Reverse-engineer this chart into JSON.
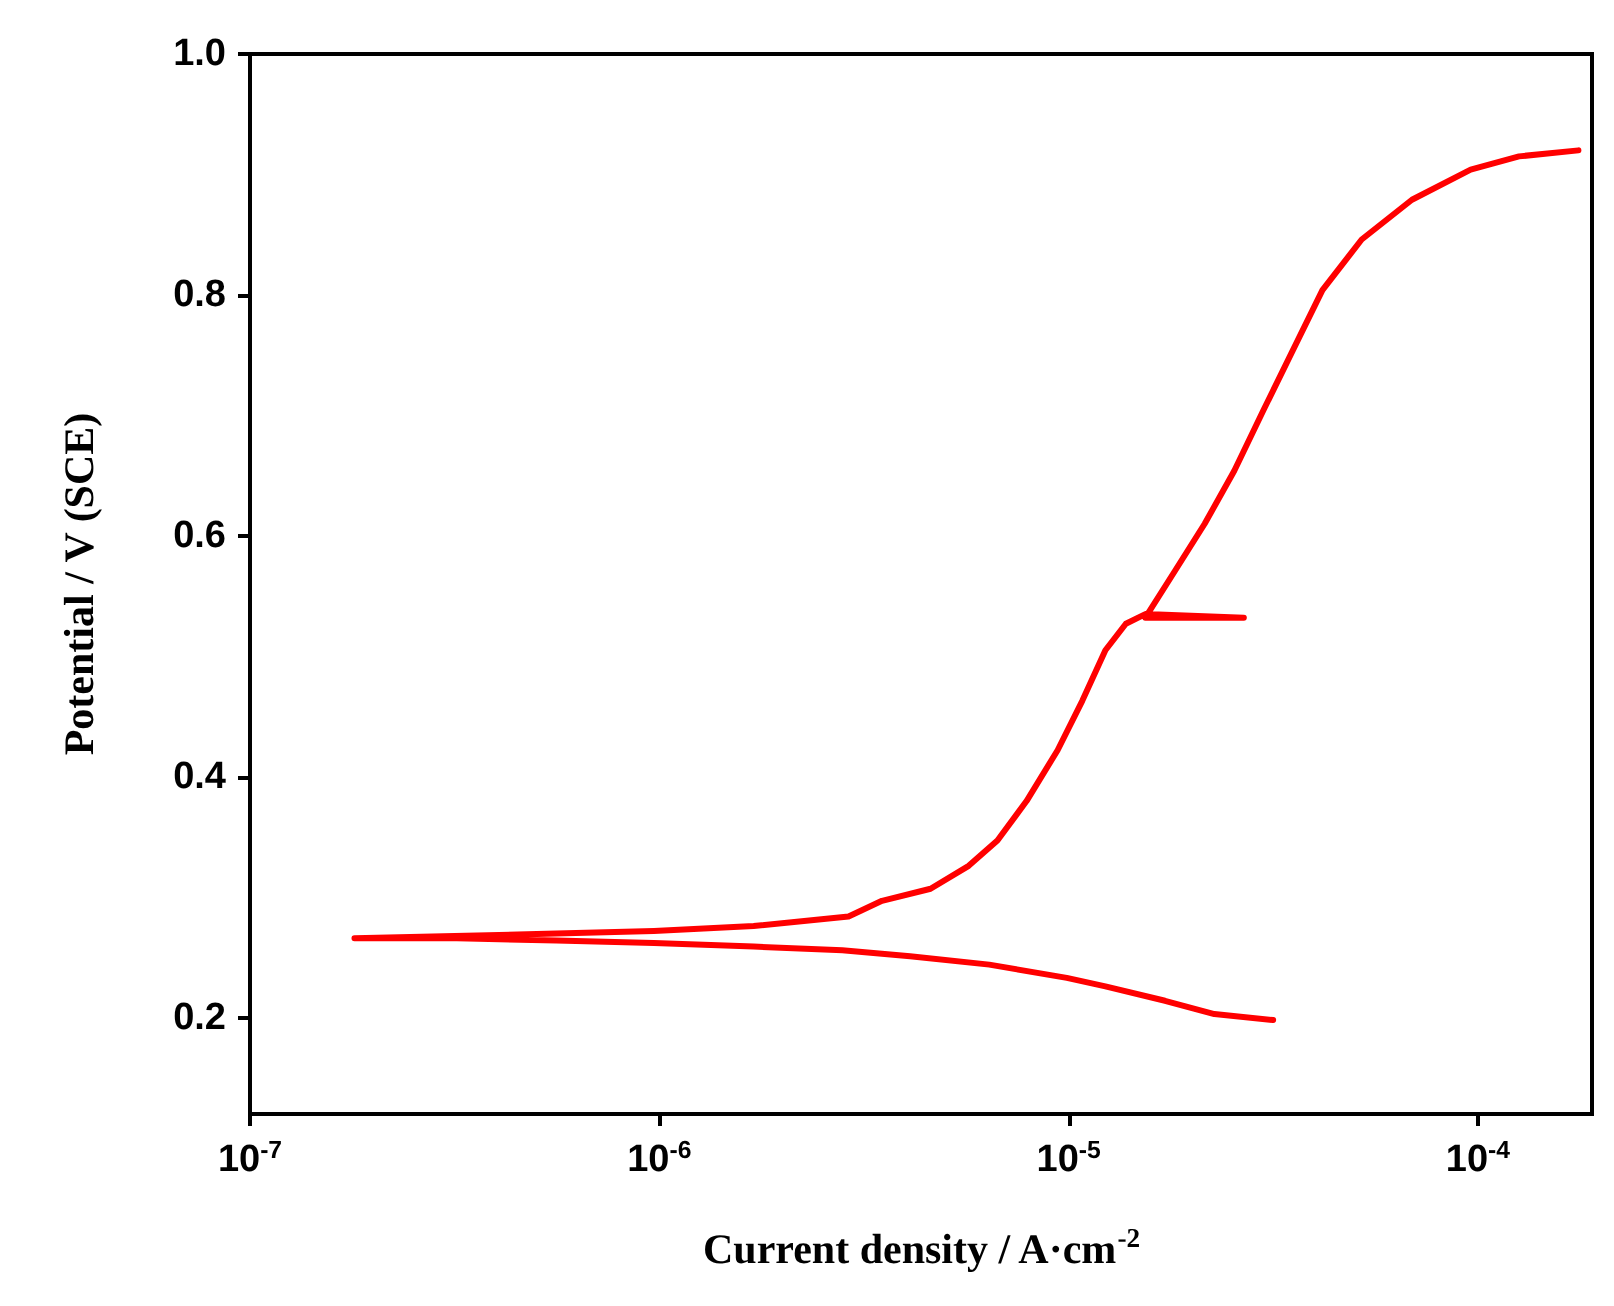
{
  "chart_data": {
    "type": "line",
    "xlabel": "Current density / A·cm$^{-2}$",
    "ylabel": "Potential / V (SCE)",
    "log": "x",
    "grid": false,
    "marker": "none",
    "line_style": "solid",
    "xlim": [
      1e-07,
      0.00019
    ],
    "xticks": [
      {
        "value": 1e-07,
        "label": "10$^{-7}$"
      },
      {
        "value": 1e-06,
        "label": "10$^{-6}$"
      },
      {
        "value": 1e-05,
        "label": "10$^{-5}$"
      },
      {
        "value": 0.0001,
        "label": "10$^{-4}$"
      }
    ],
    "ylim": [
      0.12,
      1.0
    ],
    "yticks": [
      0.2,
      0.4,
      0.6,
      0.8,
      {
        "value": 1.0,
        "label": "1.0"
      }
    ],
    "series": [
      {
        "color": "#ff0000",
        "x": [
          3.16e-05,
          2.27e-05,
          1.72e-05,
          1.23e-05,
          9.9e-06,
          6.4e-06,
          4.1e-06,
          2.8e-06,
          1.7e-06,
          9.7e-07,
          5.6e-07,
          3.2e-07,
          1.8e-07,
          4.5e-07,
          9.7e-07,
          1.7e-06,
          2.9e-06,
          3.5e-06,
          4.6e-06,
          5.7e-06,
          6.7e-06,
          7.9e-06,
          9.4e-06,
          1.08e-05,
          1.23e-05,
          1.38e-05,
          1.54e-05,
          2.68e-05,
          1.54e-05,
          1.82e-05,
          2.15e-05,
          2.54e-05,
          2.99e-05,
          3.53e-05,
          4.17e-05,
          5.2e-05,
          6.9e-05,
          9.6e-05,
          0.000126,
          0.000176
        ],
        "values": [
          0.198,
          0.203,
          0.214,
          0.226,
          0.233,
          0.244,
          0.251,
          0.256,
          0.259,
          0.262,
          0.264,
          0.266,
          0.266,
          0.269,
          0.272,
          0.276,
          0.284,
          0.297,
          0.307,
          0.326,
          0.347,
          0.38,
          0.422,
          0.463,
          0.505,
          0.527,
          0.535,
          0.532,
          0.532,
          0.571,
          0.61,
          0.654,
          0.704,
          0.754,
          0.804,
          0.846,
          0.879,
          0.904,
          0.915,
          0.92
        ]
      }
    ]
  }
}
